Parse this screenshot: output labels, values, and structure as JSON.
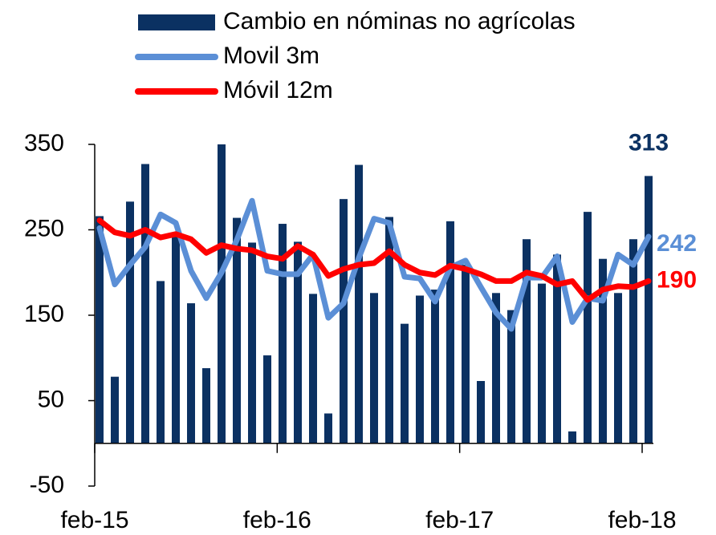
{
  "chart_data": {
    "type": "bar",
    "categories": [
      "feb-15",
      null,
      null,
      null,
      null,
      null,
      null,
      null,
      null,
      null,
      null,
      null,
      "feb-16",
      null,
      null,
      null,
      null,
      null,
      null,
      null,
      null,
      null,
      null,
      null,
      "feb-17",
      null,
      null,
      null,
      null,
      null,
      null,
      null,
      null,
      null,
      null,
      null,
      "feb-18"
    ],
    "series": [
      {
        "name": "Cambio en nóminas no agrícolas",
        "type": "bar",
        "color": "#0b3162",
        "values": [
          266,
          78,
          283,
          327,
          190,
          247,
          164,
          88,
          350,
          264,
          235,
          103,
          257,
          236,
          175,
          35,
          286,
          326,
          176,
          265,
          140,
          173,
          180,
          260,
          209,
          73,
          176,
          156,
          239,
          187,
          221,
          14,
          271,
          216,
          176,
          239,
          313
        ]
      },
      {
        "name": "Movil 3m",
        "type": "line",
        "color": "#5b8fd6",
        "values": [
          252,
          186,
          209,
          230,
          268,
          258,
          202,
          170,
          200,
          238,
          284,
          202,
          198,
          198,
          221,
          147,
          164,
          217,
          263,
          258,
          195,
          193,
          166,
          206,
          214,
          183,
          153,
          134,
          194,
          194,
          219,
          142,
          170,
          167,
          221,
          209,
          242
        ]
      },
      {
        "name": "Móvil 12m",
        "type": "line",
        "color": "#ff0000",
        "values": [
          261,
          247,
          243,
          250,
          241,
          245,
          239,
          223,
          232,
          228,
          226,
          219,
          216,
          231,
          221,
          196,
          204,
          209,
          211,
          225,
          209,
          200,
          197,
          208,
          204,
          198,
          190,
          190,
          200,
          196,
          186,
          190,
          168,
          180,
          184,
          183,
          190
        ]
      }
    ],
    "ylim": [
      -50,
      350
    ],
    "yticks": [
      -50,
      50,
      150,
      250,
      350
    ]
  }
}
